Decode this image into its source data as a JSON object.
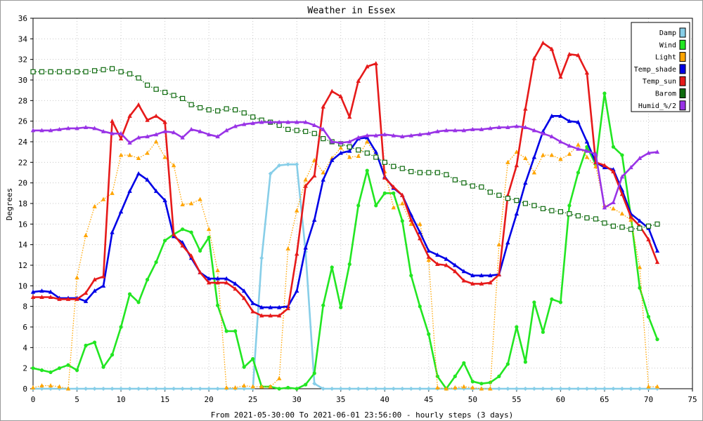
{
  "chart_data": {
    "type": "line",
    "title": "Weather in Essex",
    "xlabel": "From 2021-05-30:00 To 2021-06-01 23:56:00 - hourly steps (3 days)",
    "ylabel": "Degrees",
    "xlim": [
      0,
      75
    ],
    "ylim": [
      0,
      36
    ],
    "xticks": [
      0,
      5,
      10,
      15,
      20,
      25,
      30,
      35,
      40,
      45,
      50,
      55,
      60,
      65,
      70,
      75
    ],
    "yticks": [
      0,
      2,
      4,
      6,
      8,
      10,
      12,
      14,
      16,
      18,
      20,
      22,
      24,
      26,
      28,
      30,
      32,
      34,
      36
    ],
    "grid": true,
    "legend_position": "top-right",
    "series": [
      {
        "name": "Damp",
        "color": "#87cee8",
        "style": "solid-thick",
        "marker": "diamond",
        "values": [
          0,
          0,
          0,
          0,
          0,
          0,
          0,
          0,
          0,
          0,
          0,
          0,
          0,
          0,
          0,
          0,
          0,
          0,
          0,
          0,
          0,
          0,
          0,
          0,
          0,
          0,
          12.7,
          20.9,
          21.7,
          21.8,
          21.8,
          13.3,
          0.5,
          0,
          0,
          0,
          0,
          0,
          0,
          0,
          0,
          0,
          0,
          0,
          0,
          0,
          0,
          0,
          0,
          0,
          0,
          0,
          0,
          0,
          0,
          0,
          0,
          0,
          0,
          0,
          0,
          0,
          0,
          0,
          0,
          0,
          0,
          0,
          0,
          0,
          0,
          0
        ]
      },
      {
        "name": "Wind",
        "color": "#22e622",
        "style": "solid-thick",
        "marker": "circle",
        "values": [
          2.0,
          1.8,
          1.6,
          2.0,
          2.3,
          1.8,
          4.2,
          4.5,
          2.1,
          3.3,
          6.0,
          9.2,
          8.4,
          10.6,
          12.3,
          14.4,
          15.0,
          15.5,
          15.2,
          13.4,
          14.7,
          8.1,
          5.6,
          5.6,
          2.1,
          2.9,
          0.2,
          0.2,
          0,
          0.1,
          0,
          0.4,
          1.5,
          8.1,
          11.8,
          7.9,
          12.1,
          17.8,
          21.2,
          17.8,
          19.0,
          19.0,
          16.3,
          11.0,
          8.0,
          5.3,
          1.2,
          0,
          1.2,
          2.5,
          0.7,
          0.5,
          0.6,
          1.2,
          2.4,
          6.0,
          2.6,
          8.4,
          5.5,
          8.7,
          8.4,
          17.8,
          21.0,
          23.5,
          21.8,
          28.7,
          23.5,
          22.7,
          16.7,
          9.8,
          7.0,
          4.8
        ]
      },
      {
        "name": "Light",
        "color": "#ffa500",
        "style": "dotted",
        "marker": "triangle",
        "values": [
          0.1,
          0.3,
          0.3,
          0.2,
          0,
          10.8,
          14.9,
          17.7,
          18.4,
          19.0,
          22.7,
          22.7,
          22.4,
          22.9,
          24.0,
          22.5,
          21.7,
          17.9,
          18.0,
          18.4,
          15.5,
          11.5,
          0.1,
          0.1,
          0.3,
          0.2,
          0.2,
          0.2,
          1.0,
          13.6,
          17.3,
          20.3,
          22.2,
          21.0,
          22.4,
          23.4,
          22.5,
          22.6,
          24.0,
          22.7,
          21.1,
          17.6,
          18.0,
          16.0,
          16.0,
          12.5,
          0.1,
          0,
          0.1,
          0.2,
          0.1,
          0,
          0,
          14.0,
          22.0,
          23.0,
          22.4,
          21.0,
          22.7,
          22.7,
          22.3,
          22.8,
          23.7,
          22.5,
          21.6,
          17.8,
          17.5,
          17.0,
          16.4,
          11.8,
          0.2,
          0.2
        ]
      },
      {
        "name": "Temp_shade",
        "color": "#0000e6",
        "style": "solid-thick",
        "marker": "triangle",
        "values": [
          9.4,
          9.5,
          9.4,
          8.8,
          8.8,
          8.8,
          8.5,
          9.5,
          10.0,
          15.2,
          17.2,
          19.2,
          20.9,
          20.3,
          19.2,
          18.3,
          14.8,
          14.2,
          12.7,
          11.3,
          10.7,
          10.7,
          10.7,
          10.2,
          9.5,
          8.3,
          7.9,
          7.9,
          7.9,
          8.0,
          9.5,
          13.7,
          16.4,
          20.3,
          22.2,
          22.9,
          23.1,
          24.3,
          24.4,
          23.0,
          20.6,
          19.5,
          18.8,
          16.9,
          15.2,
          13.4,
          13.0,
          12.6,
          12.0,
          11.4,
          11.0,
          11.0,
          11.0,
          11.1,
          14.2,
          17.0,
          20.0,
          22.5,
          25.0,
          26.5,
          26.5,
          26.0,
          25.9,
          24.0,
          22.0,
          21.5,
          21.3,
          19.3,
          17.0,
          16.3,
          15.6,
          13.4
        ]
      },
      {
        "name": "Temp_sun",
        "color": "#e61a1a",
        "style": "solid-thick",
        "marker": "triangle",
        "values": [
          8.9,
          8.9,
          8.9,
          8.7,
          8.7,
          8.7,
          9.3,
          10.6,
          10.9,
          26.0,
          24.3,
          26.5,
          27.6,
          26.1,
          26.5,
          25.9,
          15.0,
          13.9,
          12.9,
          11.3,
          10.3,
          10.3,
          10.3,
          9.7,
          8.8,
          7.5,
          7.1,
          7.1,
          7.1,
          7.8,
          13.1,
          19.7,
          20.7,
          27.4,
          28.9,
          28.4,
          26.4,
          29.9,
          31.3,
          31.6,
          20.5,
          19.6,
          18.8,
          16.4,
          14.6,
          12.8,
          12.1,
          12.0,
          11.4,
          10.5,
          10.2,
          10.2,
          10.3,
          11.1,
          18.8,
          21.7,
          27.2,
          32.1,
          33.6,
          33.0,
          30.3,
          32.5,
          32.4,
          30.7,
          22.0,
          21.7,
          21.1,
          18.9,
          16.7,
          15.8,
          14.5,
          12.3
        ]
      },
      {
        "name": "Barom",
        "color": "#0f6b0f",
        "style": "dotted",
        "marker": "square-hollow",
        "values": [
          30.8,
          30.8,
          30.8,
          30.8,
          30.8,
          30.8,
          30.8,
          30.9,
          31.0,
          31.1,
          30.8,
          30.6,
          30.2,
          29.5,
          29.1,
          28.8,
          28.5,
          28.2,
          27.6,
          27.3,
          27.1,
          27.0,
          27.2,
          27.1,
          26.8,
          26.4,
          26.1,
          25.9,
          25.6,
          25.2,
          25.1,
          25.0,
          24.8,
          24.3,
          24.0,
          23.8,
          23.5,
          23.2,
          22.9,
          22.5,
          22.0,
          21.6,
          21.4,
          21.1,
          21.0,
          21.0,
          21.0,
          20.8,
          20.3,
          20.0,
          19.7,
          19.6,
          19.1,
          18.8,
          18.5,
          18.3,
          18.0,
          17.8,
          17.5,
          17.3,
          17.2,
          17.0,
          16.8,
          16.6,
          16.5,
          16.1,
          15.8,
          15.7,
          15.5,
          15.6,
          15.8,
          16.0
        ]
      },
      {
        "name": "Humid_%/2",
        "color": "#9933e6",
        "style": "solid-thick",
        "marker": "triangle",
        "values": [
          25.1,
          25.1,
          25.1,
          25.2,
          25.3,
          25.3,
          25.4,
          25.3,
          25.0,
          24.8,
          24.8,
          23.9,
          24.4,
          24.5,
          24.7,
          25.0,
          24.9,
          24.4,
          25.2,
          25.0,
          24.7,
          24.5,
          25.1,
          25.5,
          25.7,
          25.8,
          25.9,
          25.9,
          25.9,
          25.9,
          25.9,
          25.9,
          25.6,
          25.2,
          24.0,
          23.9,
          24.0,
          24.4,
          24.6,
          24.6,
          24.7,
          24.6,
          24.5,
          24.6,
          24.7,
          24.8,
          25.0,
          25.1,
          25.1,
          25.1,
          25.2,
          25.2,
          25.3,
          25.4,
          25.4,
          25.5,
          25.4,
          25.1,
          24.8,
          24.5,
          24.0,
          23.6,
          23.3,
          23.1,
          22.8,
          17.6,
          18.1,
          20.6,
          21.5,
          22.4,
          22.9,
          23.0
        ]
      }
    ]
  }
}
